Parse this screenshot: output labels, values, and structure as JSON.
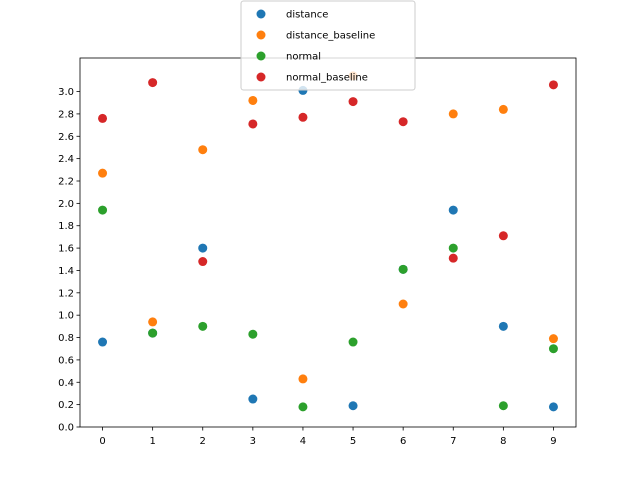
{
  "chart_data": {
    "type": "scatter",
    "title": "",
    "xlabel": "",
    "ylabel": "",
    "xlim": [
      -0.45,
      9.45
    ],
    "ylim": [
      0.0,
      3.3
    ],
    "x_ticks": [
      "0",
      "1",
      "2",
      "3",
      "4",
      "5",
      "6",
      "7",
      "8",
      "9"
    ],
    "y_ticks": [
      "0.0",
      "0.2",
      "0.4",
      "0.6",
      "0.8",
      "1.0",
      "1.2",
      "1.4",
      "1.6",
      "1.8",
      "2.0",
      "2.2",
      "2.4",
      "2.6",
      "2.8",
      "3.0"
    ],
    "grid": false,
    "legend_position": "top-center",
    "x": [
      0,
      1,
      2,
      3,
      4,
      5,
      6,
      7,
      8,
      9
    ],
    "series": [
      {
        "name": "distance",
        "color": "#1f77b4",
        "values": [
          0.76,
          0.84,
          1.6,
          0.25,
          3.01,
          0.19,
          1.41,
          1.94,
          0.9,
          0.18
        ]
      },
      {
        "name": "distance_baseline",
        "color": "#ff7f0e",
        "values": [
          2.27,
          0.94,
          2.48,
          2.92,
          0.43,
          3.14,
          1.1,
          2.8,
          2.84,
          0.79
        ]
      },
      {
        "name": "normal",
        "color": "#2ca02c",
        "values": [
          1.94,
          0.84,
          0.9,
          0.83,
          0.18,
          0.76,
          1.41,
          1.6,
          0.19,
          0.7
        ]
      },
      {
        "name": "normal_baseline",
        "color": "#d62728",
        "values": [
          2.76,
          3.08,
          1.48,
          2.71,
          2.77,
          2.91,
          2.73,
          1.51,
          1.71,
          3.06
        ]
      }
    ]
  }
}
